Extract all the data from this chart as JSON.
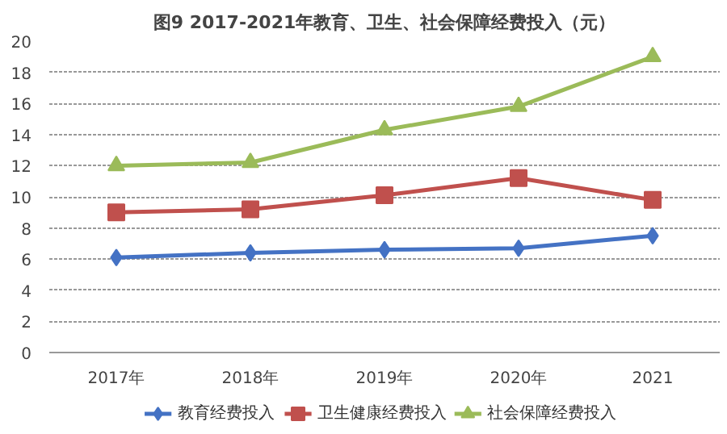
{
  "chart_data": {
    "type": "line",
    "title": "图9 2017-2021年教育、卫生、社会保障经费投入（元）",
    "categories": [
      "2017年",
      "2018年",
      "2019年",
      "2020年",
      "2021"
    ],
    "series": [
      {
        "name": "教育经费投入",
        "color": "#4472c4",
        "marker": "diamond",
        "values": [
          6.1,
          6.4,
          6.6,
          6.7,
          7.5
        ]
      },
      {
        "name": "卫生健康经费投入",
        "color": "#c0504d",
        "marker": "square",
        "values": [
          9.0,
          9.2,
          10.1,
          11.2,
          9.8
        ]
      },
      {
        "name": "社会保障经费投入",
        "color": "#9bbb59",
        "marker": "triangle",
        "values": [
          12.0,
          12.2,
          14.3,
          15.8,
          19.0
        ]
      }
    ],
    "ylim": [
      0,
      20
    ],
    "yticks": [
      0,
      2,
      4,
      6,
      8,
      10,
      12,
      14,
      16,
      18,
      20
    ],
    "grid": "y",
    "legend": "bottom"
  }
}
